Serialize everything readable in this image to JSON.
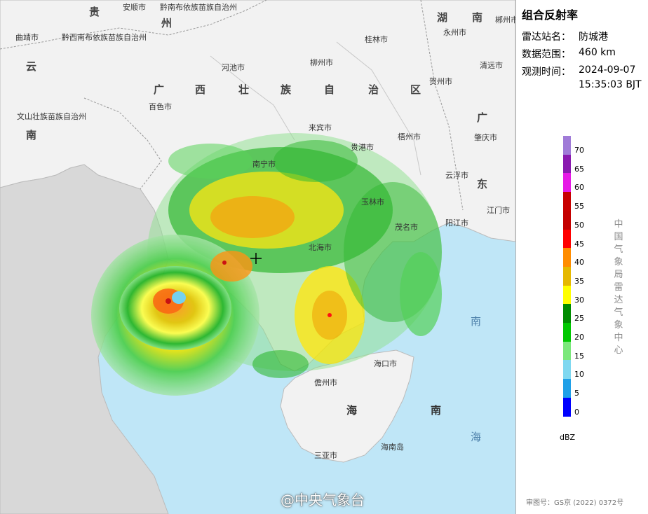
{
  "panel": {
    "title": "组合反射率",
    "station_label": "雷达站名：",
    "station_value": "防城港",
    "range_label": "数据范围：",
    "range_value": "460 km",
    "time_label": "观测时间：",
    "time_value": "2024-09-07",
    "time_value2": "15:35:03 BJT",
    "org_vertical": "中国气象局雷达气象中心",
    "unit": "dBZ",
    "credit": "审图号：GS京 (2022) 0372号"
  },
  "legend": {
    "ticks": [
      "70",
      "65",
      "60",
      "55",
      "50",
      "45",
      "40",
      "35",
      "30",
      "25",
      "20",
      "15",
      "10",
      "5",
      "0"
    ],
    "colors": [
      "#a07bd8",
      "#8a1ab0",
      "#e61ae6",
      "#c80000",
      "#c40000",
      "#ff0000",
      "#ff8c00",
      "#e5b800",
      "#ffff00",
      "#008c00",
      "#00c800",
      "#7be87b",
      "#7fd8f0",
      "#1fa0e8",
      "#0000ff"
    ]
  },
  "map": {
    "cities": [
      {
        "name": "安顺市"
      },
      {
        "name": "黔南布依族苗族自治州"
      },
      {
        "name": "曲靖市"
      },
      {
        "name": "黔西南布依族苗族自治州"
      },
      {
        "name": "桂林市"
      },
      {
        "name": "永州市"
      },
      {
        "name": "河池市"
      },
      {
        "name": "柳州市"
      },
      {
        "name": "清远市"
      },
      {
        "name": "贺州市"
      },
      {
        "name": "百色市"
      },
      {
        "name": "文山壮族苗族自治州"
      },
      {
        "name": "来宾市"
      },
      {
        "name": "梧州市"
      },
      {
        "name": "肇庆市"
      },
      {
        "name": "贵港市"
      },
      {
        "name": "南宁市"
      },
      {
        "name": "云浮市"
      },
      {
        "name": "玉林市"
      },
      {
        "name": "江门市"
      },
      {
        "name": "阳江市"
      },
      {
        "name": "茂名市"
      },
      {
        "name": "北海市"
      },
      {
        "name": "海口市"
      },
      {
        "name": "儋州市"
      },
      {
        "name": "海南岛"
      },
      {
        "name": "三亚市"
      },
      {
        "name": "郴州市"
      }
    ],
    "provinces": [
      {
        "name": "贵"
      },
      {
        "name": "州"
      },
      {
        "name": "湖"
      },
      {
        "name": "南"
      },
      {
        "name": "云"
      },
      {
        "name": "南"
      },
      {
        "name": "广"
      },
      {
        "name": "西"
      },
      {
        "name": "壮"
      },
      {
        "name": "族"
      },
      {
        "name": "自"
      },
      {
        "name": "治"
      },
      {
        "name": "区"
      },
      {
        "name": "广"
      },
      {
        "name": "东"
      }
    ],
    "seas": [
      {
        "name": "南"
      },
      {
        "name": "海"
      },
      {
        "name": "海"
      },
      {
        "name": "南"
      }
    ],
    "watermark": "@中央气象台"
  }
}
